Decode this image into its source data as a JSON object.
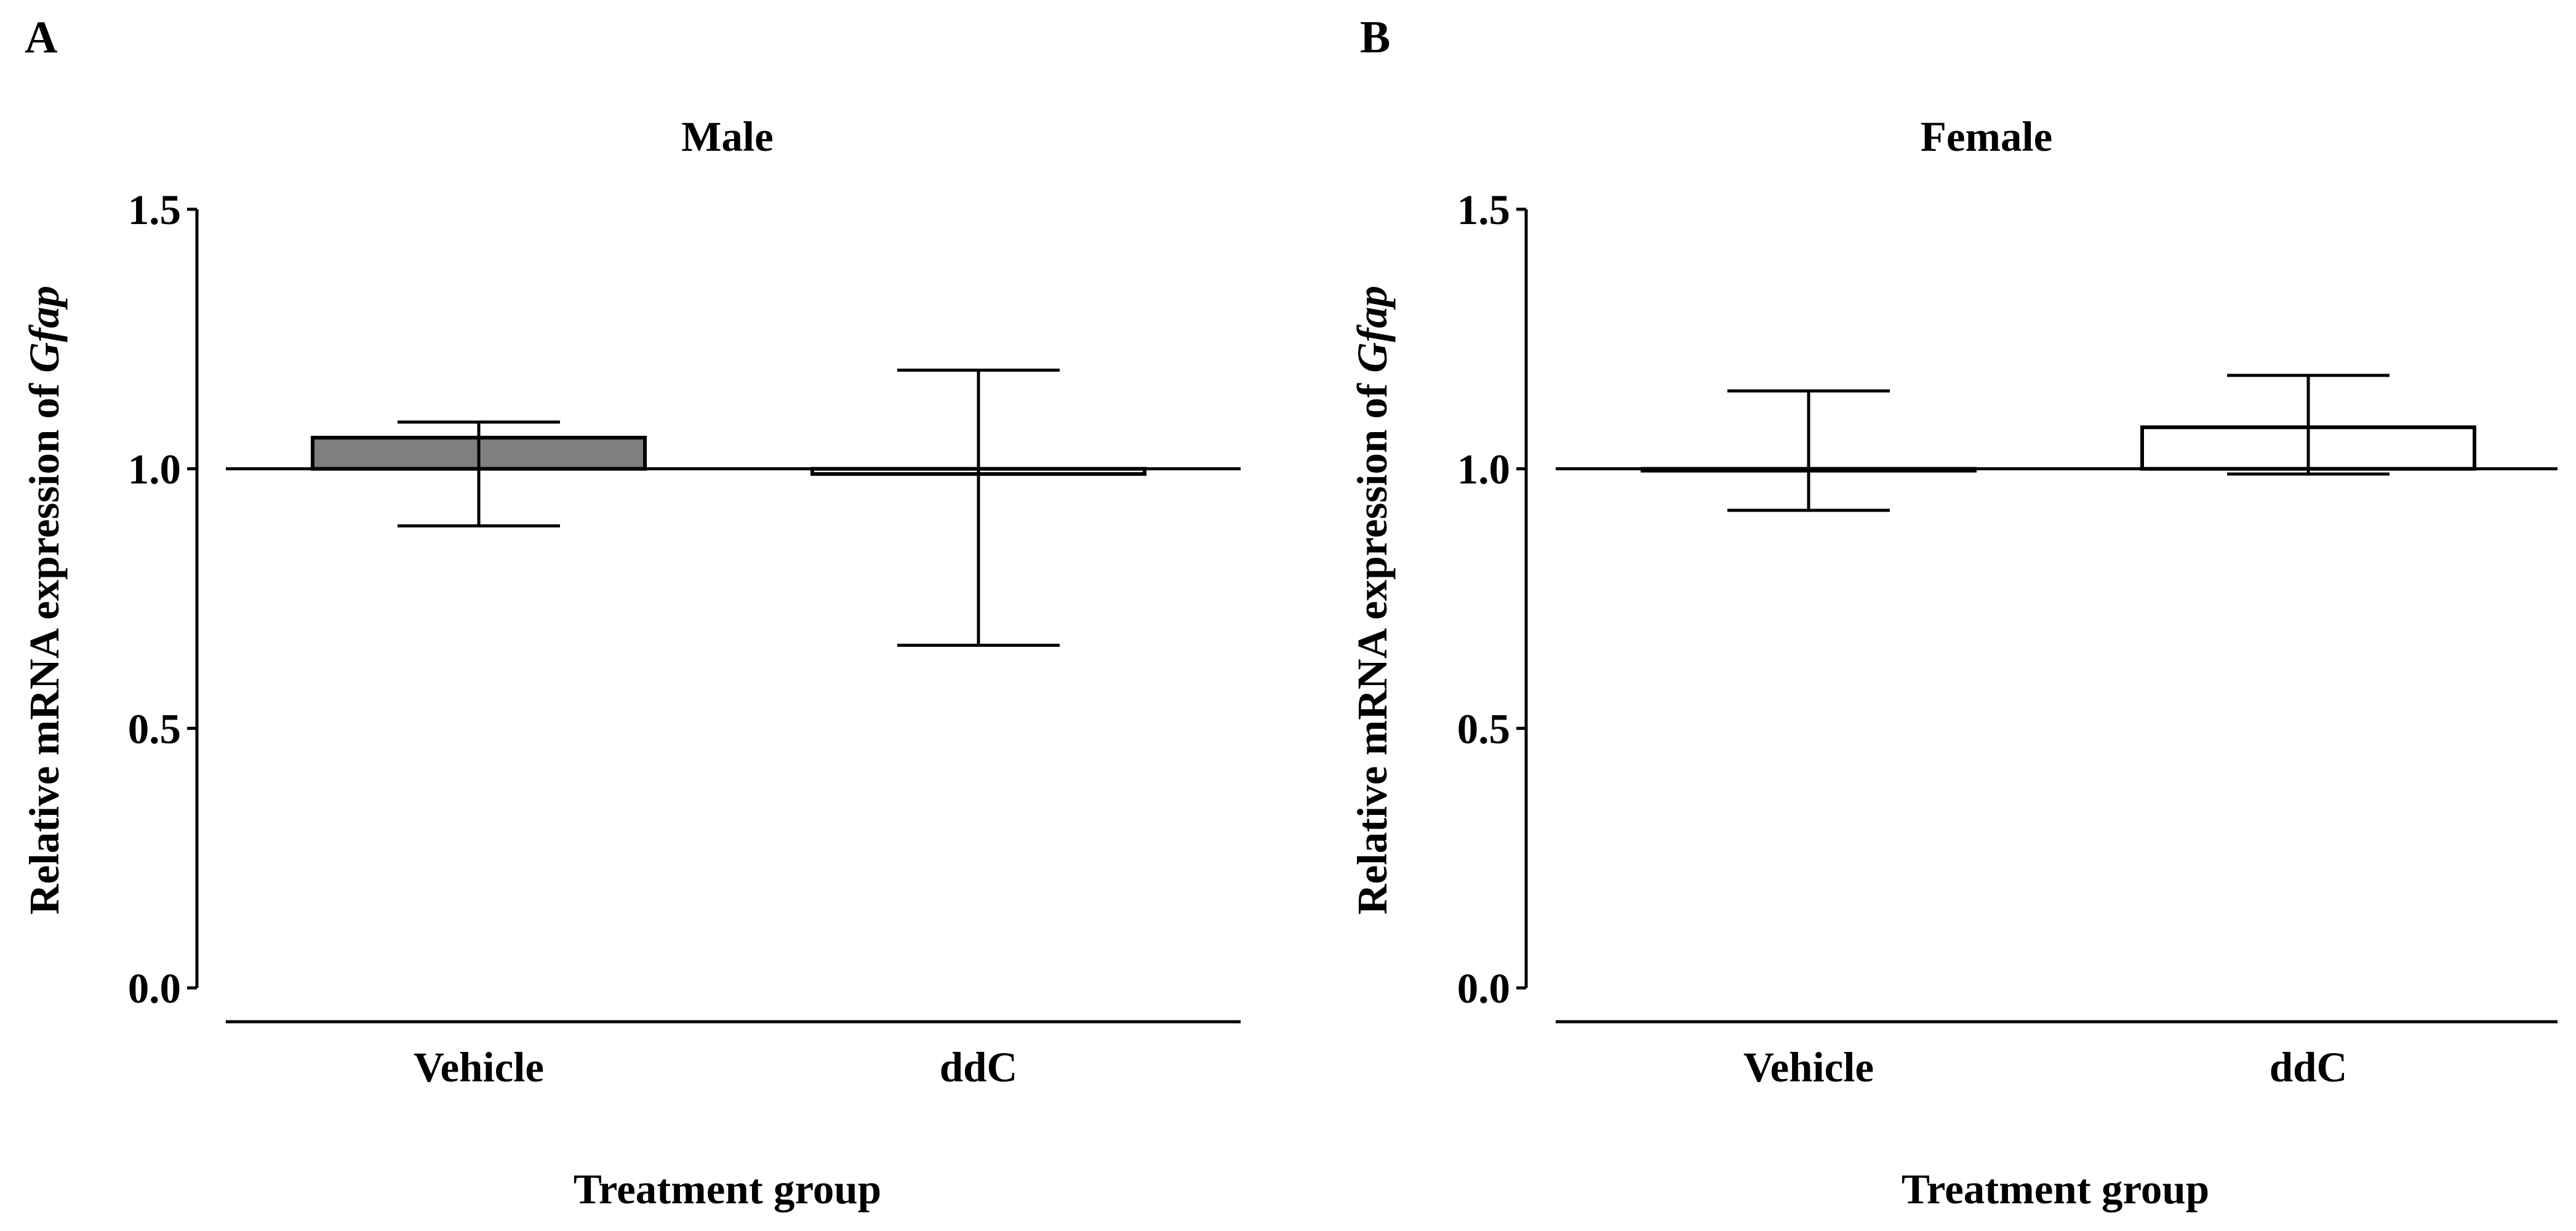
{
  "chart_data": [
    {
      "type": "bar",
      "panel": "A",
      "title": "Male",
      "ylabel_prefix": "Relative mRNA expression of ",
      "ylabel_gene": "Gfap",
      "xlabel": "Treatment group",
      "baseline": 1.0,
      "ylim": [
        0.0,
        1.5
      ],
      "yticks": [
        0.0,
        0.5,
        1.0,
        1.5
      ],
      "ytick_labels": [
        "0.0",
        "0.5",
        "1.0",
        "1.5"
      ],
      "categories": [
        "Vehicle",
        "ddC"
      ],
      "values": [
        1.06,
        0.99
      ],
      "error_low": [
        0.89,
        0.66
      ],
      "error_high": [
        1.09,
        1.19
      ],
      "fills": [
        "#7f7f7f",
        "#ffffff"
      ]
    },
    {
      "type": "bar",
      "panel": "B",
      "title": "Female",
      "ylabel_prefix": "Relative mRNA expression of ",
      "ylabel_gene": "Gfap",
      "xlabel": "Treatment group",
      "baseline": 1.0,
      "ylim": [
        0.0,
        1.5
      ],
      "yticks": [
        0.0,
        0.5,
        1.0,
        1.5
      ],
      "ytick_labels": [
        "0.0",
        "0.5",
        "1.0",
        "1.5"
      ],
      "categories": [
        "Vehicle",
        "ddC"
      ],
      "values": [
        1.0,
        1.08
      ],
      "error_low": [
        0.92,
        0.99
      ],
      "error_high": [
        1.15,
        1.18
      ],
      "fills": [
        "#ffffff",
        "#ffffff"
      ]
    }
  ]
}
